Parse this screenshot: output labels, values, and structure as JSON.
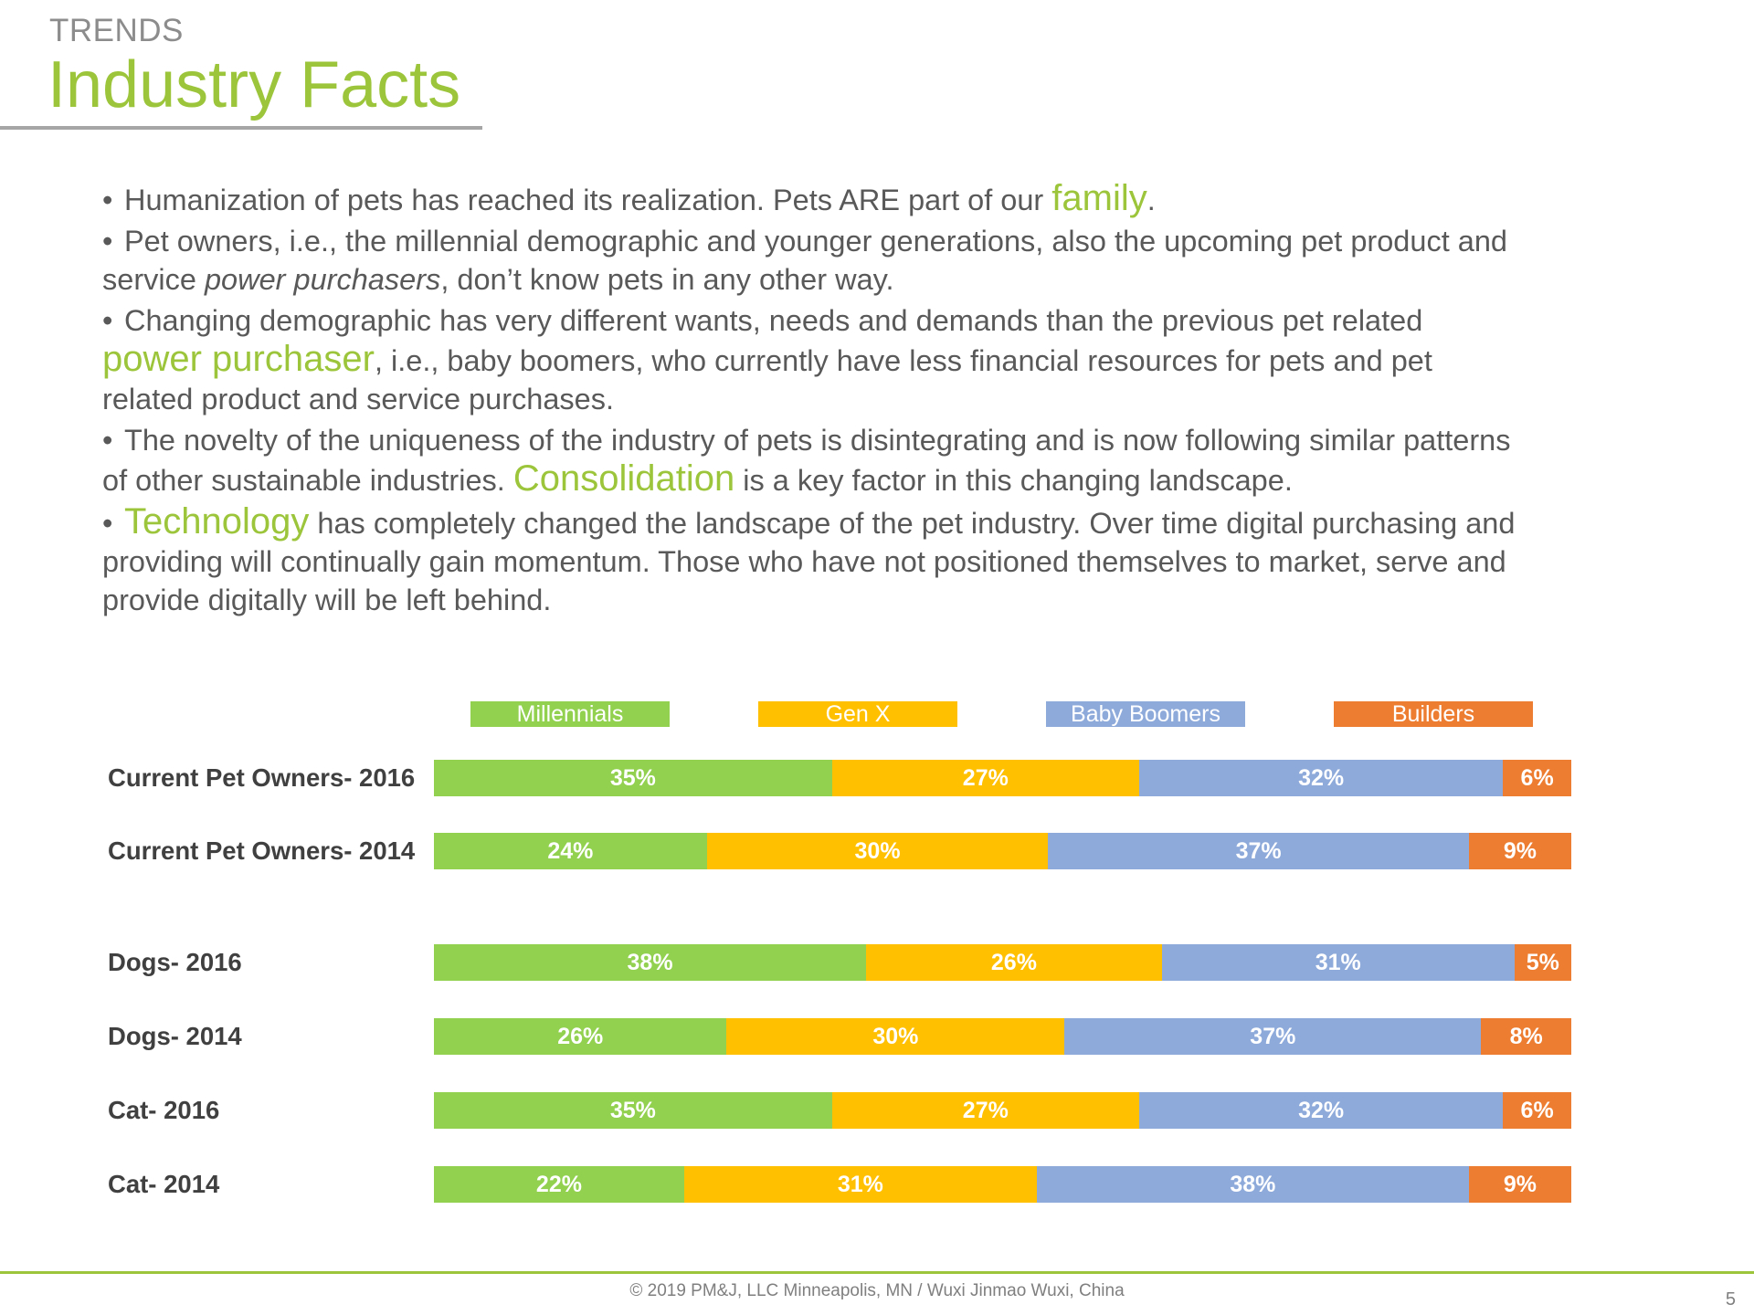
{
  "header": {
    "kicker": "TRENDS",
    "title": "Industry Facts"
  },
  "bullets": {
    "b1_pre": "Humanization of pets has reached its realization. Pets ARE part of our ",
    "b1_hl": "family",
    "b1_post": ".",
    "b2_pre": "Pet owners, i.e., the millennial demographic and younger generations, also the upcoming pet product and service ",
    "b2_em": "power purchasers",
    "b2_post": ", don’t know pets in any other way.",
    "b3_pre": "Changing demographic has very different wants, needs and demands than the previous pet related ",
    "b3_hl": "power purchaser",
    "b3_post": ", i.e., baby boomers, who currently have less financial resources for pets and pet related product and service purchases.",
    "b4_pre": "The novelty of the uniqueness of the industry of pets is disintegrating and is now following similar patterns of other sustainable industries. ",
    "b4_hl": "Consolidation",
    "b4_post": " is a key factor in this changing landscape.",
    "b5_hl": "Technology",
    "b5_post": " has completely changed the landscape of the pet industry. Over time digital purchasing and providing will continually gain momentum. Those who have not positioned themselves to market, serve and provide digitally will be left behind."
  },
  "chart_data": {
    "type": "bar",
    "orientation": "horizontal",
    "stacked": true,
    "legend_position": "top",
    "categories": [
      "Current Pet Owners- 2016",
      "Current Pet Owners- 2014",
      "Dogs- 2016",
      "Dogs- 2014",
      "Cat- 2016",
      "Cat- 2014"
    ],
    "series": [
      {
        "name": "Millennials",
        "color": "#92d050",
        "values": [
          35,
          24,
          38,
          26,
          35,
          22
        ],
        "labels": [
          "35%",
          "24%",
          "38%",
          "26%",
          "35%",
          "22%"
        ]
      },
      {
        "name": "Gen X",
        "color": "#ffc000",
        "values": [
          27,
          30,
          26,
          30,
          27,
          31
        ],
        "labels": [
          "27%",
          "30%",
          "26%",
          "30%",
          "27%",
          "31%"
        ]
      },
      {
        "name": "Baby Boomers",
        "color": "#8eaadb",
        "values": [
          32,
          37,
          31,
          37,
          32,
          38
        ],
        "labels": [
          "32%",
          "37%",
          "31%",
          "37%",
          "32%",
          "38%"
        ]
      },
      {
        "name": "Builders",
        "color": "#ed7d31",
        "values": [
          6,
          9,
          5,
          8,
          6,
          9
        ],
        "labels": [
          "6%",
          "9%",
          "5%",
          "8%",
          "6%",
          "9%"
        ]
      }
    ]
  },
  "footer": {
    "text": "© 2019 PM&J, LLC  Minneapolis, MN  /  Wuxi Jinmao  Wuxi, China",
    "page": "5"
  }
}
